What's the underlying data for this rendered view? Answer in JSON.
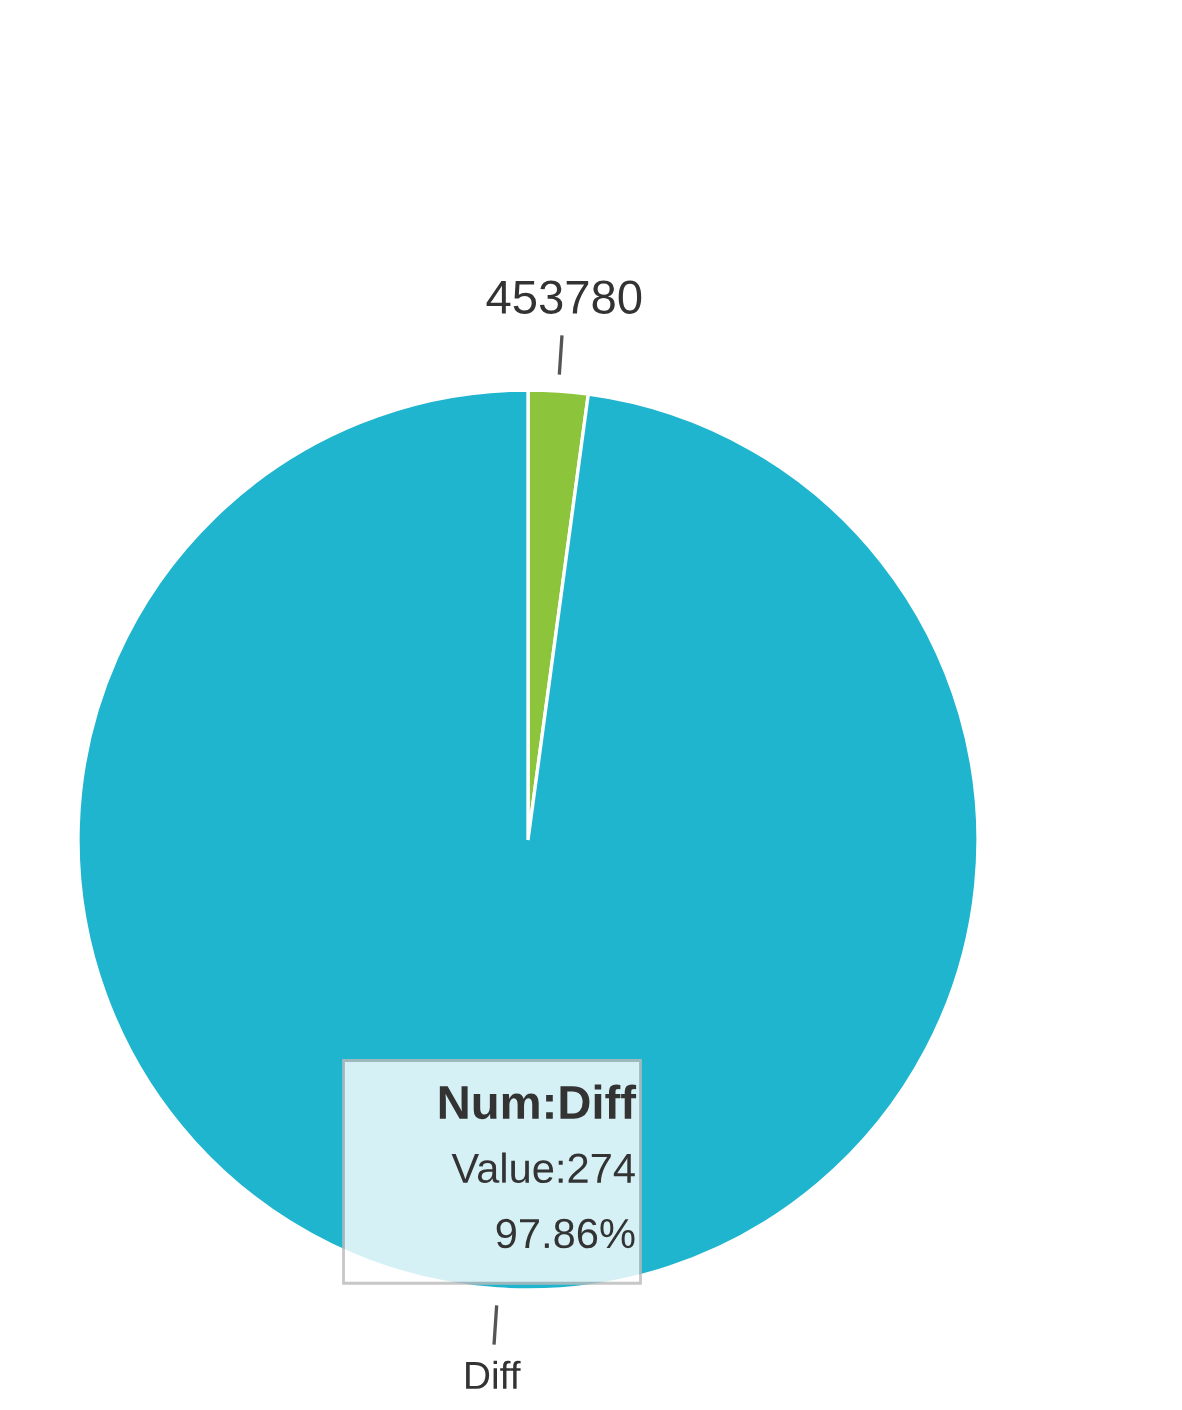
{
  "chart_data": {
    "type": "pie",
    "categories": [
      "453780",
      "Diff"
    ],
    "values": [
      2.14,
      97.86
    ],
    "colors": [
      "#8cc43c",
      "#1fb5cf"
    ],
    "annotations": [
      "Num:Diff\nValue:274\n97.86%"
    ]
  }
}
